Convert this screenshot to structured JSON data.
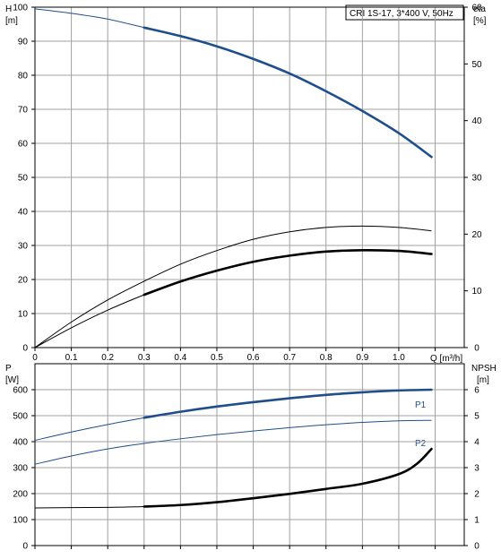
{
  "chart_data": [
    {
      "type": "line",
      "panel": "top",
      "legend_box": "CRI 1S-17, 3*400 V, 50Hz",
      "left_axis": {
        "label_line1": "H",
        "label_line2": "[m]",
        "ylim": [
          0,
          100
        ],
        "ticks": [
          "0",
          "10",
          "20",
          "30",
          "40",
          "50",
          "60",
          "70",
          "80",
          "90",
          "100"
        ]
      },
      "right_axis": {
        "label_line1": "eta",
        "label_line2": "[%]",
        "ylim": [
          0,
          60
        ],
        "ticks": [
          "0",
          "10",
          "20",
          "30",
          "40",
          "50",
          "60"
        ]
      },
      "x_axis": {
        "label": "Q [m³/h]",
        "xlim": [
          0,
          1.18
        ],
        "ticks": [
          "0",
          "0.1",
          "0.2",
          "0.3",
          "0.4",
          "0.5",
          "0.6",
          "0.7",
          "0.8",
          "0.9",
          "1.0"
        ]
      },
      "grid": true,
      "series": [
        {
          "axis": "left",
          "color": "#1f4e8c",
          "x": [
            0,
            0.1,
            0.2,
            0.3,
            0.4,
            0.5,
            0.6,
            0.7,
            0.8,
            0.9,
            1.0,
            1.09
          ],
          "y": [
            99.5,
            98.2,
            96.5,
            94.0,
            91.5,
            88.5,
            84.8,
            80.5,
            75.3,
            69.5,
            63.0,
            56.0
          ],
          "bold_from": 0.3
        },
        {
          "axis": "left",
          "color": "#000000",
          "x": [
            0,
            0.1,
            0.2,
            0.3,
            0.4,
            0.5,
            0.6,
            0.7,
            0.8,
            0.9,
            1.0,
            1.09
          ],
          "y": [
            0,
            7.5,
            14.0,
            19.5,
            24.5,
            28.5,
            31.8,
            34.0,
            35.3,
            35.7,
            35.3,
            34.3
          ]
        },
        {
          "axis": "left",
          "color": "#000000",
          "x": [
            0,
            0.1,
            0.2,
            0.3,
            0.4,
            0.5,
            0.6,
            0.7,
            0.8,
            0.9,
            1.0,
            1.09
          ],
          "y": [
            0,
            5.8,
            11.0,
            15.5,
            19.4,
            22.6,
            25.2,
            27.0,
            28.2,
            28.6,
            28.4,
            27.5
          ],
          "bold_from": 0.3
        }
      ]
    },
    {
      "type": "line",
      "panel": "bottom",
      "left_axis": {
        "label_line1": "P",
        "label_line2": "[W]",
        "ylim": [
          0,
          700
        ],
        "ticks": [
          "0",
          "100",
          "200",
          "300",
          "400",
          "500",
          "600"
        ]
      },
      "right_axis": {
        "label_line1": "NPSH",
        "label_line2": "[m]",
        "ylim": [
          0,
          7
        ],
        "ticks": [
          "0",
          "1",
          "2",
          "3",
          "4",
          "5",
          "6"
        ]
      },
      "x_axis": {
        "xlim": [
          0,
          1.18
        ]
      },
      "grid": true,
      "series": [
        {
          "name": "P1",
          "axis": "left",
          "color": "#1f4e8c",
          "x": [
            0,
            0.1,
            0.2,
            0.3,
            0.4,
            0.5,
            0.6,
            0.7,
            0.8,
            0.9,
            1.0,
            1.09
          ],
          "y": [
            405,
            437,
            466,
            492,
            515,
            535,
            552,
            567,
            580,
            590,
            597,
            600
          ],
          "bold_from": 0.3
        },
        {
          "name": "P2",
          "axis": "left",
          "color": "#1f4e8c",
          "x": [
            0,
            0.1,
            0.2,
            0.3,
            0.4,
            0.5,
            0.6,
            0.7,
            0.8,
            0.9,
            1.0,
            1.09
          ],
          "y": [
            313,
            345,
            372,
            393,
            411,
            427,
            441,
            454,
            465,
            474,
            480,
            482
          ]
        },
        {
          "axis": "right",
          "color": "#000000",
          "x": [
            0,
            0.1,
            0.2,
            0.3,
            0.4,
            0.5,
            0.6,
            0.7,
            0.8,
            0.9,
            1.0,
            1.05,
            1.09
          ],
          "y": [
            1.45,
            1.46,
            1.47,
            1.5,
            1.56,
            1.67,
            1.82,
            1.99,
            2.18,
            2.38,
            2.75,
            3.15,
            3.72
          ],
          "bold_from": 0.3
        }
      ]
    }
  ]
}
